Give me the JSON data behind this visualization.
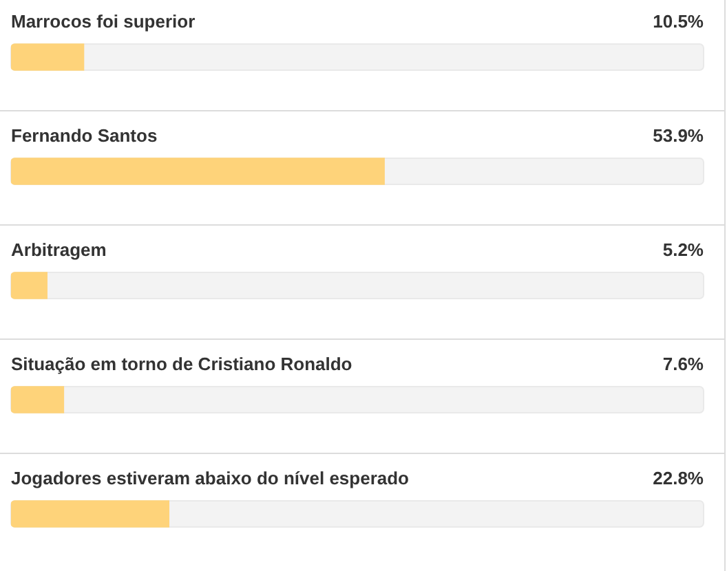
{
  "chart_data": {
    "type": "bar",
    "orientation": "horizontal",
    "categories": [
      "Marrocos foi superior",
      "Fernando Santos",
      "Arbitragem",
      "Situação em torno de Cristiano Ronaldo",
      "Jogadores estiveram abaixo do nível esperado"
    ],
    "values": [
      10.5,
      53.9,
      5.2,
      7.6,
      22.8
    ],
    "value_labels": [
      "10.5%",
      "53.9%",
      "5.2%",
      "7.6%",
      "22.8%"
    ],
    "color": "#fed37a",
    "xlim": [
      0,
      100
    ],
    "grid": "y",
    "tick_labels": "y"
  }
}
